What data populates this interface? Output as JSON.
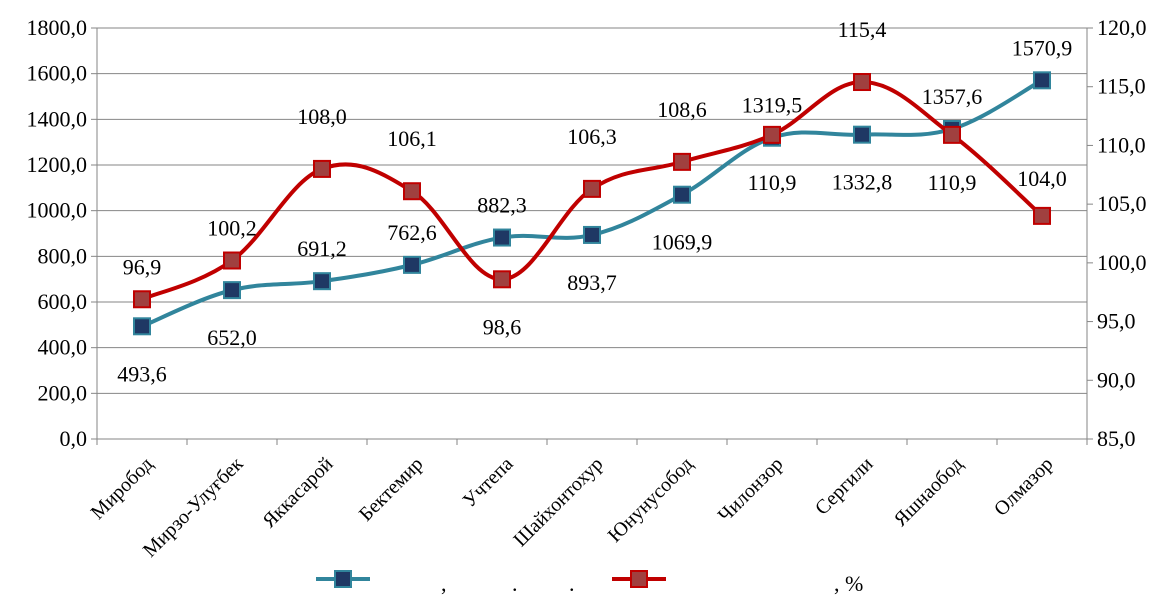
{
  "chart_data": {
    "type": "line",
    "categories": [
      "Миробод",
      "Мирзо-Улуғбек",
      "Яккасарой",
      "Бектемир",
      "Учтепа",
      "Шайхонтохур",
      "Юнунусобод",
      "Чилонзор",
      "Сергили",
      "Яшнаобод",
      "Олмазор"
    ],
    "series": [
      {
        "values": [
          493.6,
          652.0,
          691.2,
          762.6,
          882.3,
          893.7,
          1069.9,
          1319.5,
          1332.8,
          1357.6,
          1570.9
        ],
        "labels": [
          "493,6",
          "652,0",
          "691,2",
          "762,6",
          "882,3",
          "893,7",
          "1069,9",
          "1319,5",
          "1332,8",
          "1357,6",
          "1570,9"
        ],
        "axis": "left",
        "color": "#31859c",
        "marker_color": "#1f3864"
      },
      {
        "values": [
          96.9,
          100.2,
          108.0,
          106.1,
          98.6,
          106.3,
          108.6,
          110.9,
          115.4,
          110.9,
          104.0
        ],
        "labels": [
          "96,9",
          "100,2",
          "108,0",
          "106,1",
          "98,6",
          "106,3",
          "108,6",
          "110,9",
          "115,4",
          "110,9",
          "104,0"
        ],
        "axis": "right",
        "color": "#c00000",
        "marker_color": "#a0403f"
      }
    ],
    "y_left": {
      "lim": [
        0,
        1800
      ],
      "ticks": [
        "0,0",
        "200,0",
        "400,0",
        "600,0",
        "800,0",
        "1000,0",
        "1200,0",
        "1400,0",
        "1600,0",
        "1800,0"
      ]
    },
    "y_right": {
      "lim": [
        85,
        120
      ],
      "ticks": [
        "85,0",
        "90,0",
        "95,0",
        "100,0",
        "105,0",
        "110,0",
        "115,0",
        "120,0"
      ]
    },
    "grid": true,
    "legend": {
      "position": "bottom",
      "texts": [
        ",",
        ".",
        ".",
        ", %"
      ]
    }
  }
}
